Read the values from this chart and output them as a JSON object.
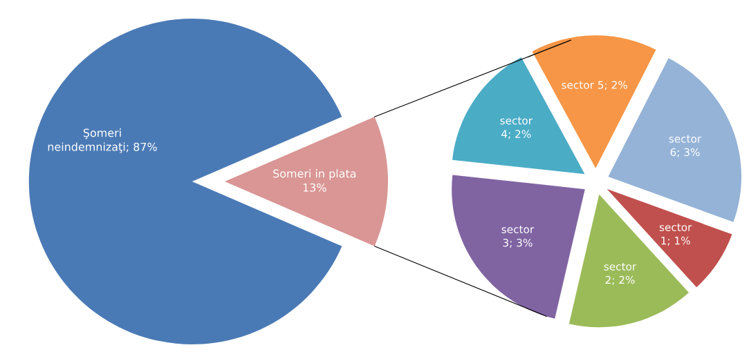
{
  "chart_data": [
    {
      "type": "pie",
      "categories": [
        "Şomeri neindemnizaţi",
        "Someri in plata"
      ],
      "values": [
        87,
        13
      ],
      "colors": [
        "#4a7ab5",
        "#d99694"
      ],
      "value_labels": [
        "87%",
        "13%"
      ]
    },
    {
      "type": "pie",
      "categories": [
        "sector 1",
        "sector 2",
        "sector 3",
        "sector 4",
        "sector 5",
        "sector 6"
      ],
      "values": [
        1,
        2,
        3,
        2,
        2,
        3
      ],
      "colors": [
        "#c0504d",
        "#9bbb59",
        "#8064a2",
        "#4bacc6",
        "#f79646",
        "#95b3d7"
      ],
      "value_labels": [
        "1%",
        "2%",
        "3%",
        "2%",
        "2%",
        "3%"
      ]
    }
  ]
}
